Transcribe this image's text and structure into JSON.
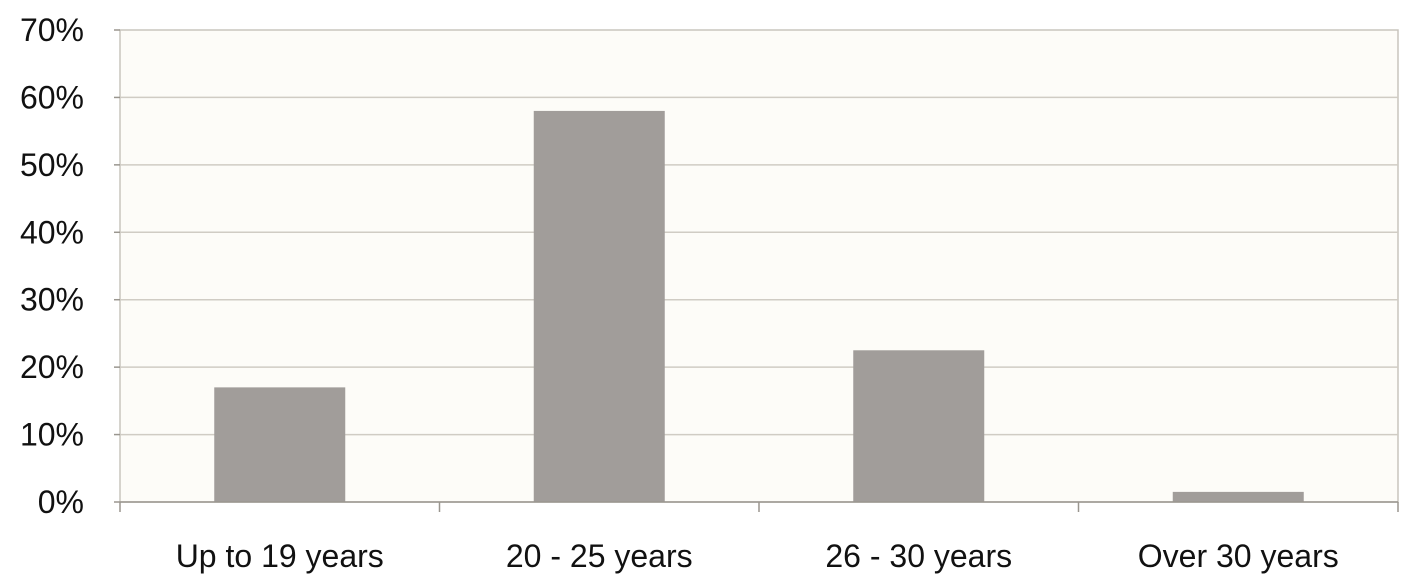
{
  "chart_data": {
    "type": "bar",
    "categories": [
      "Up to 19 years",
      "20 - 25 years",
      "26 - 30 years",
      "Over 30 years"
    ],
    "values": [
      17,
      58,
      22.5,
      1.5
    ],
    "ylim": [
      0,
      70
    ],
    "yticks": [
      "0%",
      "10%",
      "20%",
      "30%",
      "40%",
      "50%",
      "60%",
      "70%"
    ],
    "grid": true,
    "title": "",
    "xlabel": "",
    "ylabel": "",
    "colors": {
      "bar": "#a19d9a",
      "plot_background": "#fdfcf8",
      "gridline": "#d0ccc4",
      "axis": "#9a968f"
    }
  }
}
